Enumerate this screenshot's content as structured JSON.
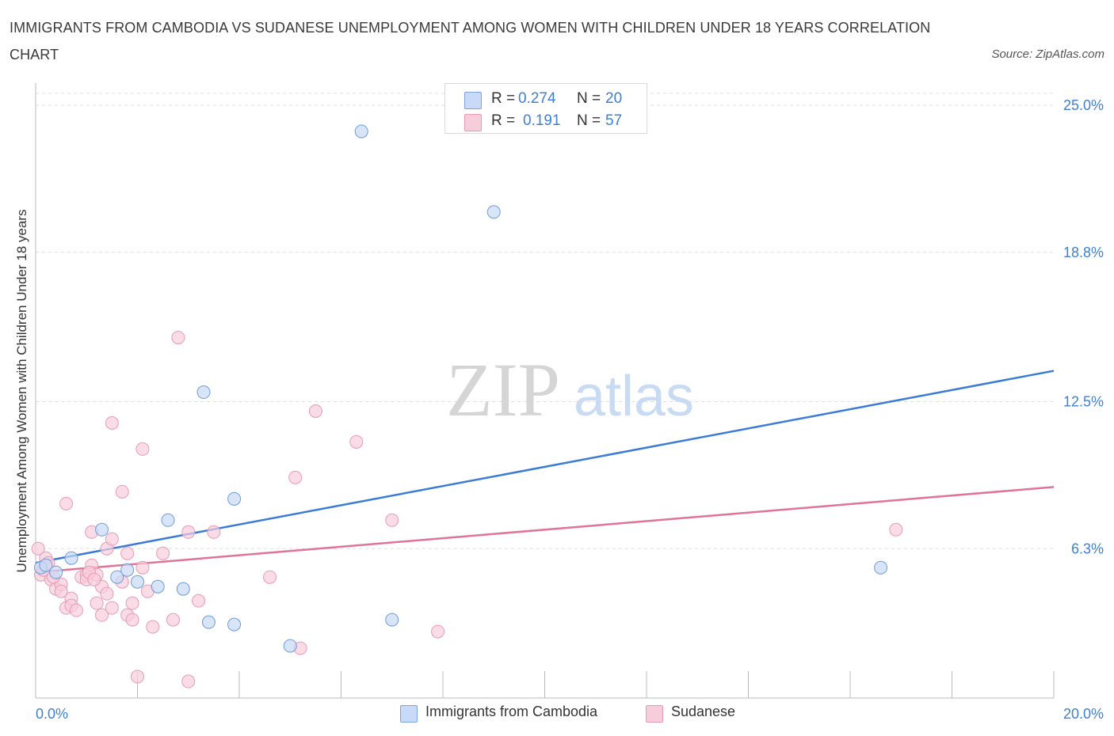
{
  "title": "IMMIGRANTS FROM CAMBODIA VS SUDANESE UNEMPLOYMENT AMONG WOMEN WITH CHILDREN UNDER 18 YEARS CORRELATION CHART",
  "source": "Source: ZipAtlas.com",
  "watermark": {
    "zip": "ZIP",
    "atlas": "atlas"
  },
  "legend_top": {
    "rows": [
      {
        "r_label": "R =",
        "r_value": "0.274",
        "n_label": "N =",
        "n_value": "20"
      },
      {
        "r_label": "R =",
        "r_value": "0.191",
        "n_label": "N =",
        "n_value": "57"
      }
    ]
  },
  "colors": {
    "cambodia": "#3a7bd5",
    "cambodia_fill": "#c8daf7",
    "sudanese": "#e07399",
    "sudanese_fill": "#f8cddb",
    "axis_label": "#3f7fd6"
  },
  "chart_data": {
    "type": "scatter",
    "title": "IMMIGRANTS FROM CAMBODIA VS SUDANESE UNEMPLOYMENT AMONG WOMEN WITH CHILDREN UNDER 18 YEARS CORRELATION CHART",
    "xlabel": "",
    "ylabel": "Unemployment Among Women with Children Under 18 years",
    "xlim": [
      0,
      20
    ],
    "ylim": [
      0,
      25
    ],
    "x_tick_labels": [
      "0.0%",
      "20.0%"
    ],
    "y_ticks": [
      6.3,
      12.5,
      18.8,
      25.0
    ],
    "y_tick_labels": [
      "6.3%",
      "12.5%",
      "18.8%",
      "25.0%"
    ],
    "grid": true,
    "legend": "bottom",
    "series": [
      {
        "name": "Immigrants from Cambodia",
        "r": 0.274,
        "n": 20,
        "trend": [
          [
            0,
            5.7
          ],
          [
            20,
            13.8
          ]
        ],
        "points": [
          [
            0.1,
            5.5
          ],
          [
            0.2,
            5.6
          ],
          [
            0.4,
            5.3
          ],
          [
            0.7,
            5.9
          ],
          [
            1.3,
            7.1
          ],
          [
            1.6,
            5.1
          ],
          [
            1.8,
            5.4
          ],
          [
            2.0,
            4.9
          ],
          [
            2.4,
            4.7
          ],
          [
            2.6,
            7.5
          ],
          [
            2.9,
            4.6
          ],
          [
            3.3,
            12.9
          ],
          [
            3.4,
            3.2
          ],
          [
            3.9,
            3.1
          ],
          [
            3.9,
            8.4
          ],
          [
            5.0,
            2.2
          ],
          [
            6.4,
            23.9
          ],
          [
            7.0,
            3.3
          ],
          [
            9.0,
            20.5
          ],
          [
            16.6,
            5.5
          ]
        ]
      },
      {
        "name": "Sudanese",
        "r": 0.191,
        "n": 57,
        "trend": [
          [
            0,
            5.3
          ],
          [
            20,
            8.9
          ]
        ],
        "points": [
          [
            0.05,
            6.3
          ],
          [
            0.1,
            5.2
          ],
          [
            0.2,
            5.9
          ],
          [
            0.3,
            5.0
          ],
          [
            0.4,
            4.6
          ],
          [
            0.5,
            4.8
          ],
          [
            0.5,
            4.5
          ],
          [
            0.6,
            3.8
          ],
          [
            0.6,
            8.2
          ],
          [
            0.7,
            4.2
          ],
          [
            0.7,
            3.9
          ],
          [
            0.8,
            3.7
          ],
          [
            0.9,
            5.1
          ],
          [
            1.0,
            5.2
          ],
          [
            1.0,
            5.0
          ],
          [
            1.1,
            5.6
          ],
          [
            1.1,
            7.0
          ],
          [
            1.2,
            5.2
          ],
          [
            1.2,
            4.0
          ],
          [
            1.3,
            4.7
          ],
          [
            1.3,
            3.5
          ],
          [
            1.4,
            4.4
          ],
          [
            1.4,
            6.3
          ],
          [
            1.5,
            3.8
          ],
          [
            1.5,
            6.7
          ],
          [
            1.5,
            11.6
          ],
          [
            1.7,
            8.7
          ],
          [
            1.7,
            4.9
          ],
          [
            1.8,
            3.5
          ],
          [
            1.8,
            6.1
          ],
          [
            1.9,
            3.3
          ],
          [
            1.9,
            4.0
          ],
          [
            2.0,
            0.9
          ],
          [
            2.1,
            10.5
          ],
          [
            2.1,
            5.5
          ],
          [
            2.2,
            4.5
          ],
          [
            2.3,
            3.0
          ],
          [
            2.5,
            6.1
          ],
          [
            2.7,
            3.3
          ],
          [
            2.8,
            15.2
          ],
          [
            3.0,
            7.0
          ],
          [
            3.0,
            0.7
          ],
          [
            3.2,
            4.1
          ],
          [
            3.5,
            7.0
          ],
          [
            4.6,
            5.1
          ],
          [
            5.1,
            9.3
          ],
          [
            5.2,
            2.1
          ],
          [
            5.5,
            12.1
          ],
          [
            6.3,
            10.8
          ],
          [
            7.0,
            7.5
          ],
          [
            7.9,
            2.8
          ],
          [
            16.9,
            7.1
          ],
          [
            0.15,
            5.4
          ],
          [
            0.25,
            5.7
          ],
          [
            0.35,
            5.1
          ],
          [
            1.05,
            5.3
          ],
          [
            1.15,
            5.0
          ]
        ]
      }
    ]
  },
  "legend_bottom": {
    "items": [
      {
        "label": "Immigrants from Cambodia"
      },
      {
        "label": "Sudanese"
      }
    ]
  }
}
